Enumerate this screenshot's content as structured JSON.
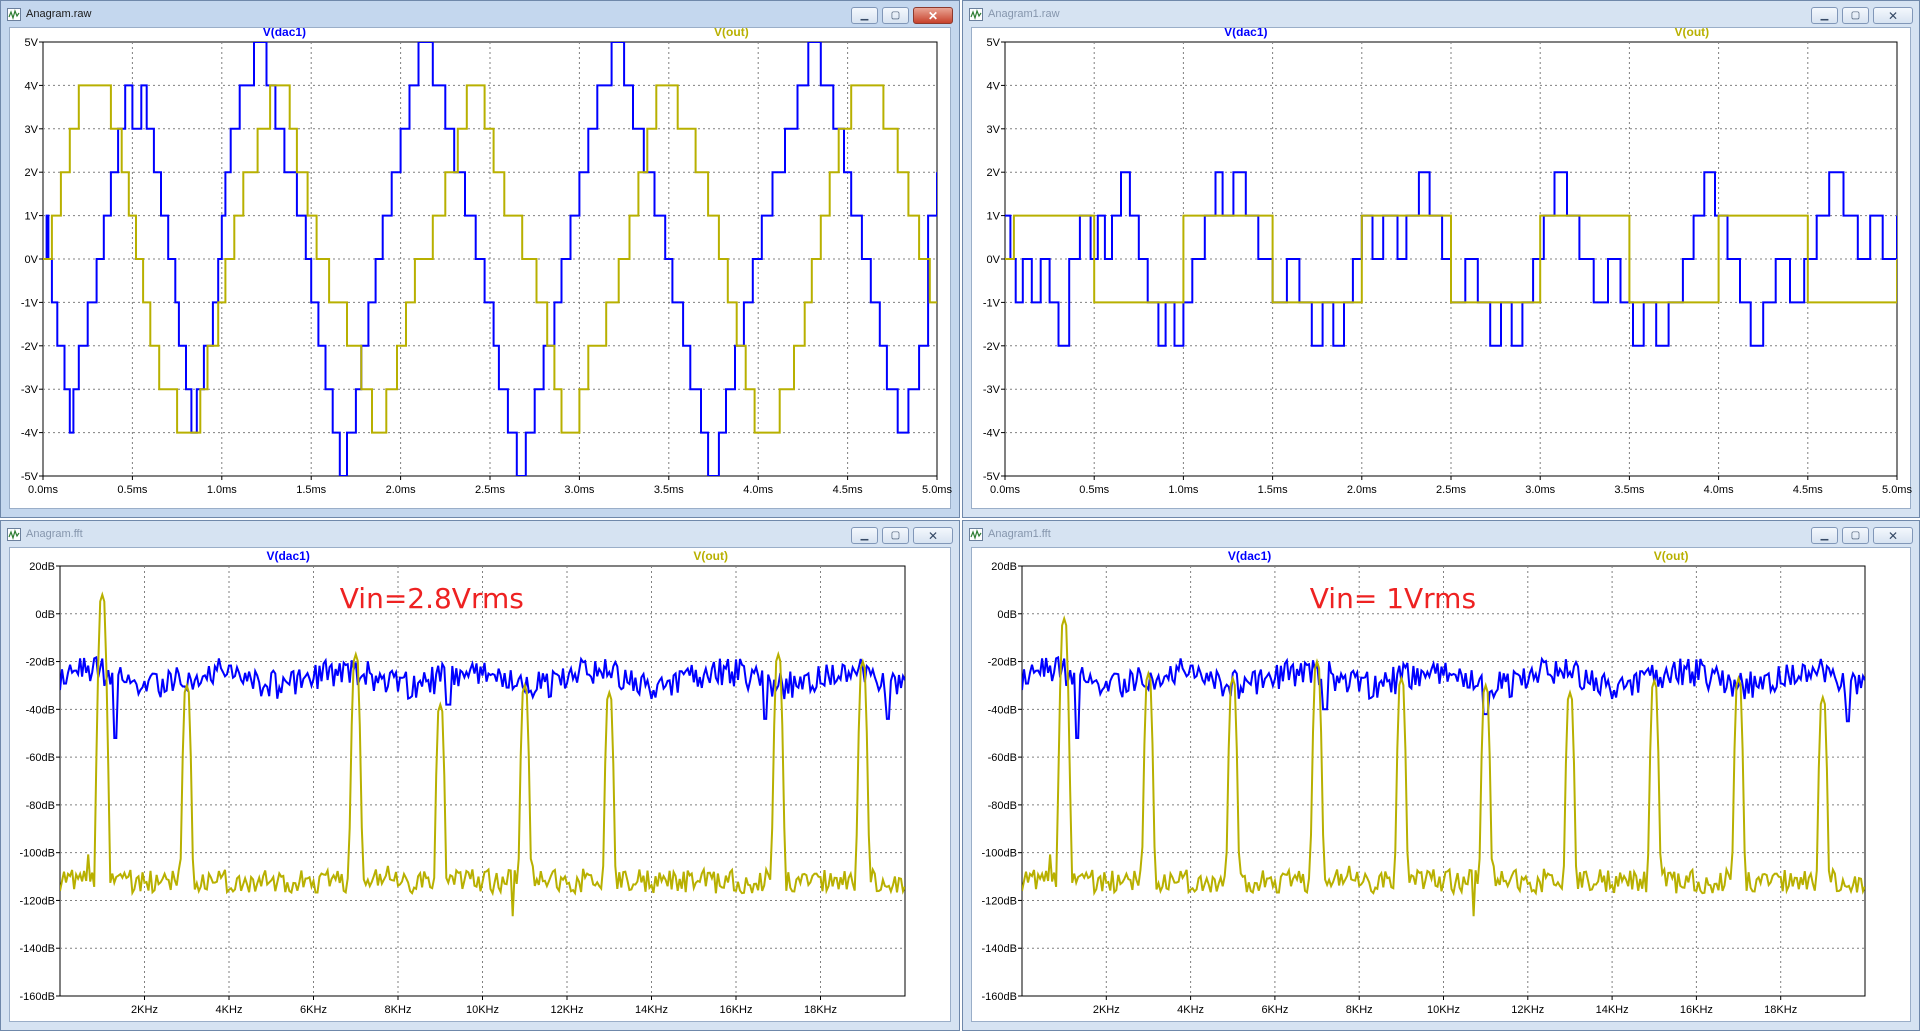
{
  "windows": [
    {
      "id": "w1",
      "title": "Anagram.raw",
      "active": true,
      "chart_data": {
        "type": "line",
        "x_tick_labels": [
          "0.0ms",
          "0.5ms",
          "1.0ms",
          "1.5ms",
          "2.0ms",
          "2.5ms",
          "3.0ms",
          "3.5ms",
          "4.0ms",
          "4.5ms",
          "5.0ms"
        ],
        "y_tick_labels": [
          "5V",
          "4V",
          "3V",
          "2V",
          "1V",
          "0V",
          "-1V",
          "-2V",
          "-3V",
          "-4V",
          "-5V"
        ],
        "xlim": [
          0,
          5
        ],
        "ylim": [
          -5,
          5
        ],
        "grid": true,
        "series": [
          {
            "name": "V(dac1)",
            "color": "#0000ff",
            "step": true,
            "x": [
              0,
              0.02,
              0.03,
              0.05,
              0.08,
              0.12,
              0.15,
              0.17,
              0.2,
              0.25,
              0.3,
              0.34,
              0.38,
              0.42,
              0.46,
              0.5,
              0.55,
              0.58,
              0.62,
              0.66,
              0.7,
              0.74,
              0.76,
              0.8,
              0.83,
              0.86,
              0.9,
              0.95,
              0.98,
              1.0,
              1.02,
              1.05,
              1.1,
              1.18,
              1.25,
              1.3,
              1.35,
              1.42,
              1.47,
              1.5,
              1.54,
              1.58,
              1.62,
              1.66,
              1.7,
              1.75,
              1.78,
              1.82,
              1.86,
              1.9,
              1.95,
              2.0,
              2.05,
              2.1,
              2.18,
              2.25,
              2.3,
              2.36,
              2.42,
              2.47,
              2.52,
              2.55,
              2.6,
              2.65,
              2.7,
              2.75,
              2.8,
              2.86,
              2.9,
              2.95,
              3.0,
              3.05,
              3.1,
              3.18,
              3.25,
              3.3,
              3.36,
              3.42,
              3.48,
              3.52,
              3.58,
              3.62,
              3.68,
              3.72,
              3.78,
              3.82,
              3.87,
              3.92,
              3.97,
              4.02,
              4.08,
              4.15,
              4.22,
              4.28,
              4.35,
              4.42,
              4.48,
              4.52,
              4.58,
              4.63,
              4.68,
              4.72,
              4.78,
              4.84,
              4.9,
              4.95,
              5.0
            ],
            "y": [
              0,
              1,
              0,
              -1,
              -2,
              -3,
              -4,
              -3,
              -2,
              -1,
              0,
              1,
              2,
              3,
              4,
              3,
              4,
              3,
              2,
              1,
              0,
              -1,
              -2,
              -3,
              -4,
              -3,
              -2,
              -1,
              0,
              1,
              2,
              3,
              4,
              5,
              4,
              3,
              2,
              1,
              0,
              -1,
              -2,
              -3,
              -4,
              -5,
              -4,
              -3,
              -2,
              -1,
              0,
              1,
              2,
              3,
              4,
              5,
              4,
              3,
              2,
              1,
              0,
              -1,
              -2,
              -3,
              -4,
              -5,
              -4,
              -3,
              -2,
              -1,
              0,
              1,
              2,
              3,
              4,
              5,
              4,
              3,
              2,
              1,
              0,
              -1,
              -2,
              -3,
              -4,
              -5,
              -4,
              -3,
              -2,
              -1,
              0,
              1,
              2,
              3,
              4,
              5,
              4,
              3,
              2,
              1,
              0,
              -1,
              -2,
              -3,
              -4,
              -3,
              -2,
              1,
              2
            ]
          },
          {
            "name": "V(out)",
            "color": "#b8b000",
            "step": true,
            "x": [
              0,
              0.05,
              0.1,
              0.15,
              0.2,
              0.3,
              0.38,
              0.44,
              0.48,
              0.52,
              0.56,
              0.6,
              0.65,
              0.75,
              0.82,
              0.88,
              0.92,
              0.98,
              1.02,
              1.07,
              1.12,
              1.2,
              1.27,
              1.33,
              1.38,
              1.42,
              1.48,
              1.53,
              1.6,
              1.7,
              1.78,
              1.84,
              1.88,
              1.92,
              1.98,
              2.03,
              2.08,
              2.18,
              2.25,
              2.32,
              2.37,
              2.42,
              2.47,
              2.52,
              2.58,
              2.68,
              2.76,
              2.82,
              2.86,
              2.9,
              2.95,
              3.0,
              3.05,
              3.15,
              3.22,
              3.28,
              3.33,
              3.38,
              3.43,
              3.48,
              3.55,
              3.65,
              3.72,
              3.78,
              3.83,
              3.88,
              3.93,
              3.98,
              4.03,
              4.12,
              4.2,
              4.26,
              4.3,
              4.35,
              4.4,
              4.45,
              4.52,
              4.62,
              4.7,
              4.78,
              4.84,
              4.9,
              4.96,
              5.0
            ],
            "y": [
              0,
              1,
              2,
              3,
              4,
              4,
              3,
              2,
              1,
              0,
              -1,
              -2,
              -3,
              -4,
              -4,
              -3,
              -2,
              -1,
              0,
              1,
              2,
              3,
              4,
              4,
              3,
              2,
              1,
              0,
              -1,
              -2,
              -3,
              -4,
              -4,
              -3,
              -2,
              -1,
              0,
              1,
              2,
              3,
              4,
              4,
              3,
              2,
              1,
              0,
              -1,
              -2,
              -3,
              -4,
              -4,
              -3,
              -2,
              -1,
              0,
              1,
              2,
              3,
              4,
              4,
              3,
              2,
              1,
              0,
              -1,
              -2,
              -3,
              -4,
              -4,
              -3,
              -2,
              -1,
              0,
              1,
              2,
              3,
              4,
              4,
              3,
              2,
              1,
              0,
              -1,
              -1
            ]
          }
        ]
      }
    },
    {
      "id": "w2",
      "title": "Anagram1.raw",
      "active": false,
      "chart_data": {
        "type": "line",
        "x_tick_labels": [
          "0.0ms",
          "0.5ms",
          "1.0ms",
          "1.5ms",
          "2.0ms",
          "2.5ms",
          "3.0ms",
          "3.5ms",
          "4.0ms",
          "4.5ms",
          "5.0ms"
        ],
        "y_tick_labels": [
          "5V",
          "4V",
          "3V",
          "2V",
          "1V",
          "0V",
          "-1V",
          "-2V",
          "-3V",
          "-4V",
          "-5V"
        ],
        "xlim": [
          0,
          5
        ],
        "ylim": [
          -5,
          5
        ],
        "grid": true,
        "series": [
          {
            "name": "V(dac1)",
            "color": "#0000ff",
            "step": true,
            "x": [
              0,
              0.03,
              0.06,
              0.1,
              0.15,
              0.2,
              0.25,
              0.3,
              0.36,
              0.42,
              0.48,
              0.52,
              0.56,
              0.6,
              0.65,
              0.7,
              0.75,
              0.8,
              0.86,
              0.9,
              0.95,
              1.0,
              1.05,
              1.12,
              1.18,
              1.22,
              1.28,
              1.35,
              1.42,
              1.5,
              1.58,
              1.65,
              1.72,
              1.78,
              1.84,
              1.9,
              1.95,
              2.0,
              2.06,
              2.12,
              2.2,
              2.25,
              2.32,
              2.38,
              2.45,
              2.5,
              2.58,
              2.65,
              2.72,
              2.78,
              2.84,
              2.9,
              2.96,
              3.02,
              3.08,
              3.15,
              3.22,
              3.3,
              3.38,
              3.45,
              3.52,
              3.58,
              3.65,
              3.72,
              3.8,
              3.86,
              3.92,
              3.98,
              4.05,
              4.12,
              4.18,
              4.25,
              4.32,
              4.4,
              4.48,
              4.55,
              4.62,
              4.7,
              4.78,
              4.85,
              4.92,
              5.0
            ],
            "y": [
              1,
              0,
              -1,
              0,
              -1,
              0,
              -1,
              -2,
              0,
              1,
              0,
              1,
              0,
              1,
              2,
              1,
              0,
              -1,
              -2,
              -1,
              -2,
              -1,
              0,
              1,
              2,
              1,
              2,
              1,
              0,
              -1,
              0,
              -1,
              -2,
              -1,
              -2,
              -1,
              0,
              1,
              0,
              1,
              0,
              1,
              2,
              1,
              0,
              -1,
              0,
              -1,
              -2,
              -1,
              -2,
              -1,
              0,
              1,
              2,
              1,
              0,
              -1,
              0,
              -1,
              -2,
              -1,
              -2,
              -1,
              0,
              1,
              2,
              1,
              0,
              -1,
              -2,
              -1,
              0,
              -1,
              0,
              1,
              2,
              1,
              0,
              1,
              0,
              1
            ]
          },
          {
            "name": "V(out)",
            "color": "#b8b000",
            "step": true,
            "x": [
              0,
              0.05,
              0.45,
              0.5,
              0.95,
              1.0,
              1.45,
              1.5,
              1.95,
              2.0,
              2.45,
              2.5,
              2.95,
              3.0,
              3.45,
              3.5,
              3.95,
              4.0,
              4.45,
              4.5,
              4.95,
              5.0
            ],
            "y": [
              0,
              1,
              1,
              -1,
              -1,
              1,
              1,
              -1,
              -1,
              1,
              1,
              -1,
              -1,
              1,
              1,
              -1,
              -1,
              1,
              1,
              -1,
              -1,
              0
            ]
          }
        ]
      }
    },
    {
      "id": "w3",
      "title": "Anagram.fft",
      "active": false,
      "annotation": "Vin=2.8Vrms",
      "chart_data": {
        "type": "line",
        "x_tick_labels": [
          "2KHz",
          "4KHz",
          "6KHz",
          "8KHz",
          "10KHz",
          "12KHz",
          "14KHz",
          "16KHz",
          "18KHz"
        ],
        "x_ticks": [
          2,
          4,
          6,
          8,
          10,
          12,
          14,
          16,
          18
        ],
        "y_tick_labels": [
          "20dB",
          "0dB",
          "-20dB",
          "-40dB",
          "-60dB",
          "-80dB",
          "-100dB",
          "-120dB",
          "-140dB",
          "-160dB"
        ],
        "xlim": [
          0,
          20
        ],
        "ylim": [
          -160,
          20
        ],
        "grid": true,
        "series": [
          {
            "name": "V(dac1)",
            "color": "#0000ff",
            "base": -27,
            "dip": [
              [
                1.3,
                -52
              ],
              [
                9.2,
                -38
              ],
              [
                16.7,
                -44
              ],
              [
                19.6,
                -44
              ]
            ]
          },
          {
            "name": "V(out)",
            "color": "#b8b000",
            "base": -112,
            "peaks": [
              [
                1.0,
                8
              ],
              [
                3.0,
                -30
              ],
              [
                7.0,
                -17
              ],
              [
                9.0,
                -38
              ],
              [
                11.0,
                -30
              ],
              [
                13.0,
                -33
              ],
              [
                17.0,
                -17
              ],
              [
                19.0,
                -20
              ]
            ]
          }
        ]
      }
    },
    {
      "id": "w4",
      "title": "Anagram1.fft",
      "active": false,
      "annotation": "Vin= 1Vrms",
      "chart_data": {
        "type": "line",
        "x_tick_labels": [
          "2KHz",
          "4KHz",
          "6KHz",
          "8KHz",
          "10KHz",
          "12KHz",
          "14KHz",
          "16KHz",
          "18KHz"
        ],
        "x_ticks": [
          2,
          4,
          6,
          8,
          10,
          12,
          14,
          16,
          18
        ],
        "y_tick_labels": [
          "20dB",
          "0dB",
          "-20dB",
          "-40dB",
          "-60dB",
          "-80dB",
          "-100dB",
          "-120dB",
          "-140dB",
          "-160dB"
        ],
        "xlim": [
          0,
          20
        ],
        "ylim": [
          -160,
          20
        ],
        "grid": true,
        "series": [
          {
            "name": "V(dac1)",
            "color": "#0000ff",
            "base": -27,
            "dip": [
              [
                1.3,
                -52
              ],
              [
                7.2,
                -40
              ],
              [
                11.0,
                -42
              ],
              [
                19.6,
                -45
              ]
            ]
          },
          {
            "name": "V(out)",
            "color": "#b8b000",
            "base": -112,
            "peaks": [
              [
                1.0,
                -2
              ],
              [
                3.0,
                -25
              ],
              [
                5.0,
                -27
              ],
              [
                7.0,
                -20
              ],
              [
                9.0,
                -27
              ],
              [
                11.0,
                -30
              ],
              [
                13.0,
                -33
              ],
              [
                15.0,
                -28
              ],
              [
                17.0,
                -27
              ],
              [
                19.0,
                -35
              ]
            ]
          }
        ]
      }
    }
  ]
}
